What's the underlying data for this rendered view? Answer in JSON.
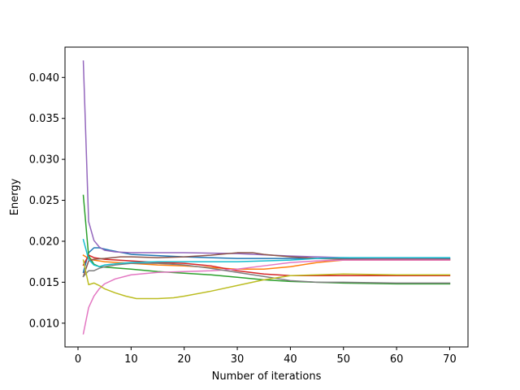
{
  "chart_data": {
    "type": "line",
    "title": "",
    "xlabel": "Number of iterations",
    "ylabel": "Energy",
    "xlim": [
      -2.45,
      73.45
    ],
    "ylim": [
      0.0071,
      0.0437
    ],
    "xticks": [
      0,
      10,
      20,
      30,
      40,
      50,
      60,
      70
    ],
    "yticks": [
      0.01,
      0.015,
      0.02,
      0.025,
      0.03,
      0.035,
      0.04
    ],
    "ytick_labels": [
      "0.010",
      "0.015",
      "0.020",
      "0.025",
      "0.030",
      "0.035",
      "0.040"
    ],
    "grid": false,
    "legend": null,
    "series": [
      {
        "color": "#1f77b4",
        "points": [
          [
            1,
            0.0162
          ],
          [
            2,
            0.0186
          ],
          [
            3,
            0.0192
          ],
          [
            4,
            0.0192
          ],
          [
            6,
            0.0189
          ],
          [
            10,
            0.0184
          ],
          [
            20,
            0.0181
          ],
          [
            30,
            0.0179
          ],
          [
            40,
            0.0179
          ],
          [
            50,
            0.0179
          ],
          [
            60,
            0.0179
          ],
          [
            70,
            0.0179
          ]
        ]
      },
      {
        "color": "#ff7f0e",
        "points": [
          [
            1,
            0.0183
          ],
          [
            2,
            0.0179
          ],
          [
            3,
            0.0177
          ],
          [
            5,
            0.0175
          ],
          [
            10,
            0.0173
          ],
          [
            15,
            0.0171
          ],
          [
            20,
            0.017
          ],
          [
            25,
            0.0168
          ],
          [
            30,
            0.0166
          ],
          [
            35,
            0.0166
          ],
          [
            40,
            0.0169
          ],
          [
            45,
            0.0174
          ],
          [
            50,
            0.0177
          ],
          [
            60,
            0.0177
          ],
          [
            70,
            0.0177
          ]
        ]
      },
      {
        "color": "#2ca02c",
        "points": [
          [
            1,
            0.0256
          ],
          [
            2,
            0.0182
          ],
          [
            3,
            0.0172
          ],
          [
            4,
            0.0169
          ],
          [
            6,
            0.0168
          ],
          [
            10,
            0.0166
          ],
          [
            15,
            0.0163
          ],
          [
            20,
            0.0161
          ],
          [
            25,
            0.0159
          ],
          [
            30,
            0.0156
          ],
          [
            35,
            0.0153
          ],
          [
            40,
            0.0151
          ],
          [
            45,
            0.015
          ],
          [
            50,
            0.0149
          ],
          [
            60,
            0.0148
          ],
          [
            70,
            0.0148
          ]
        ]
      },
      {
        "color": "#d62728",
        "points": [
          [
            1,
            0.0171
          ],
          [
            2,
            0.0183
          ],
          [
            3,
            0.018
          ],
          [
            5,
            0.0178
          ],
          [
            10,
            0.0176
          ],
          [
            15,
            0.0174
          ],
          [
            20,
            0.0173
          ],
          [
            25,
            0.017
          ],
          [
            30,
            0.0164
          ],
          [
            35,
            0.016
          ],
          [
            40,
            0.0158
          ],
          [
            45,
            0.0158
          ],
          [
            50,
            0.0158
          ],
          [
            60,
            0.0158
          ],
          [
            70,
            0.0158
          ]
        ]
      },
      {
        "color": "#9467bd",
        "points": [
          [
            1,
            0.042
          ],
          [
            2,
            0.0224
          ],
          [
            3,
            0.0201
          ],
          [
            4,
            0.0193
          ],
          [
            5,
            0.0189
          ],
          [
            7,
            0.0187
          ],
          [
            10,
            0.0186
          ],
          [
            15,
            0.0186
          ],
          [
            20,
            0.0186
          ],
          [
            30,
            0.0185
          ],
          [
            40,
            0.0182
          ],
          [
            50,
            0.018
          ],
          [
            60,
            0.0179
          ],
          [
            70,
            0.0178
          ]
        ]
      },
      {
        "color": "#8c564b",
        "points": [
          [
            1,
            0.0157
          ],
          [
            2,
            0.0176
          ],
          [
            3,
            0.0178
          ],
          [
            5,
            0.0179
          ],
          [
            8,
            0.0181
          ],
          [
            10,
            0.0181
          ],
          [
            15,
            0.018
          ],
          [
            20,
            0.0181
          ],
          [
            25,
            0.0183
          ],
          [
            30,
            0.0186
          ],
          [
            33,
            0.0186
          ],
          [
            35,
            0.0184
          ],
          [
            40,
            0.0181
          ],
          [
            45,
            0.0179
          ],
          [
            50,
            0.0178
          ],
          [
            60,
            0.0178
          ],
          [
            70,
            0.0178
          ]
        ]
      },
      {
        "color": "#e377c2",
        "points": [
          [
            1,
            0.0087
          ],
          [
            2,
            0.0119
          ],
          [
            3,
            0.0133
          ],
          [
            4,
            0.0142
          ],
          [
            5,
            0.0148
          ],
          [
            7,
            0.0154
          ],
          [
            10,
            0.0159
          ],
          [
            15,
            0.0162
          ],
          [
            20,
            0.0163
          ],
          [
            25,
            0.0164
          ],
          [
            30,
            0.0166
          ],
          [
            35,
            0.017
          ],
          [
            40,
            0.0174
          ],
          [
            45,
            0.0176
          ],
          [
            50,
            0.0177
          ],
          [
            60,
            0.0177
          ],
          [
            70,
            0.0177
          ]
        ]
      },
      {
        "color": "#7f7f7f",
        "points": [
          [
            1,
            0.0157
          ],
          [
            2,
            0.0164
          ],
          [
            3,
            0.0164
          ],
          [
            4,
            0.0167
          ],
          [
            5,
            0.0169
          ],
          [
            7,
            0.0171
          ],
          [
            10,
            0.0173
          ],
          [
            15,
            0.0173
          ],
          [
            20,
            0.0171
          ],
          [
            25,
            0.0167
          ],
          [
            30,
            0.0162
          ],
          [
            35,
            0.0157
          ],
          [
            40,
            0.0152
          ],
          [
            45,
            0.015
          ],
          [
            50,
            0.015
          ],
          [
            60,
            0.0149
          ],
          [
            70,
            0.0149
          ]
        ]
      },
      {
        "color": "#bcbd22",
        "points": [
          [
            1,
            0.0177
          ],
          [
            2,
            0.0147
          ],
          [
            3,
            0.0149
          ],
          [
            4,
            0.0146
          ],
          [
            5,
            0.0142
          ],
          [
            7,
            0.0137
          ],
          [
            9,
            0.0133
          ],
          [
            11,
            0.013
          ],
          [
            13,
            0.013
          ],
          [
            15,
            0.013
          ],
          [
            18,
            0.0131
          ],
          [
            20,
            0.0133
          ],
          [
            25,
            0.0139
          ],
          [
            30,
            0.0146
          ],
          [
            35,
            0.0153
          ],
          [
            40,
            0.0158
          ],
          [
            45,
            0.0159
          ],
          [
            50,
            0.016
          ],
          [
            60,
            0.0159
          ],
          [
            70,
            0.0159
          ]
        ]
      },
      {
        "color": "#17becf",
        "points": [
          [
            1,
            0.0202
          ],
          [
            2,
            0.0178
          ],
          [
            3,
            0.0171
          ],
          [
            4,
            0.0169
          ],
          [
            5,
            0.0171
          ],
          [
            8,
            0.0173
          ],
          [
            10,
            0.0174
          ],
          [
            15,
            0.0175
          ],
          [
            20,
            0.0175
          ],
          [
            25,
            0.0175
          ],
          [
            30,
            0.0175
          ],
          [
            35,
            0.0176
          ],
          [
            40,
            0.0177
          ],
          [
            45,
            0.0179
          ],
          [
            50,
            0.018
          ],
          [
            60,
            0.018
          ],
          [
            70,
            0.018
          ]
        ]
      }
    ]
  }
}
